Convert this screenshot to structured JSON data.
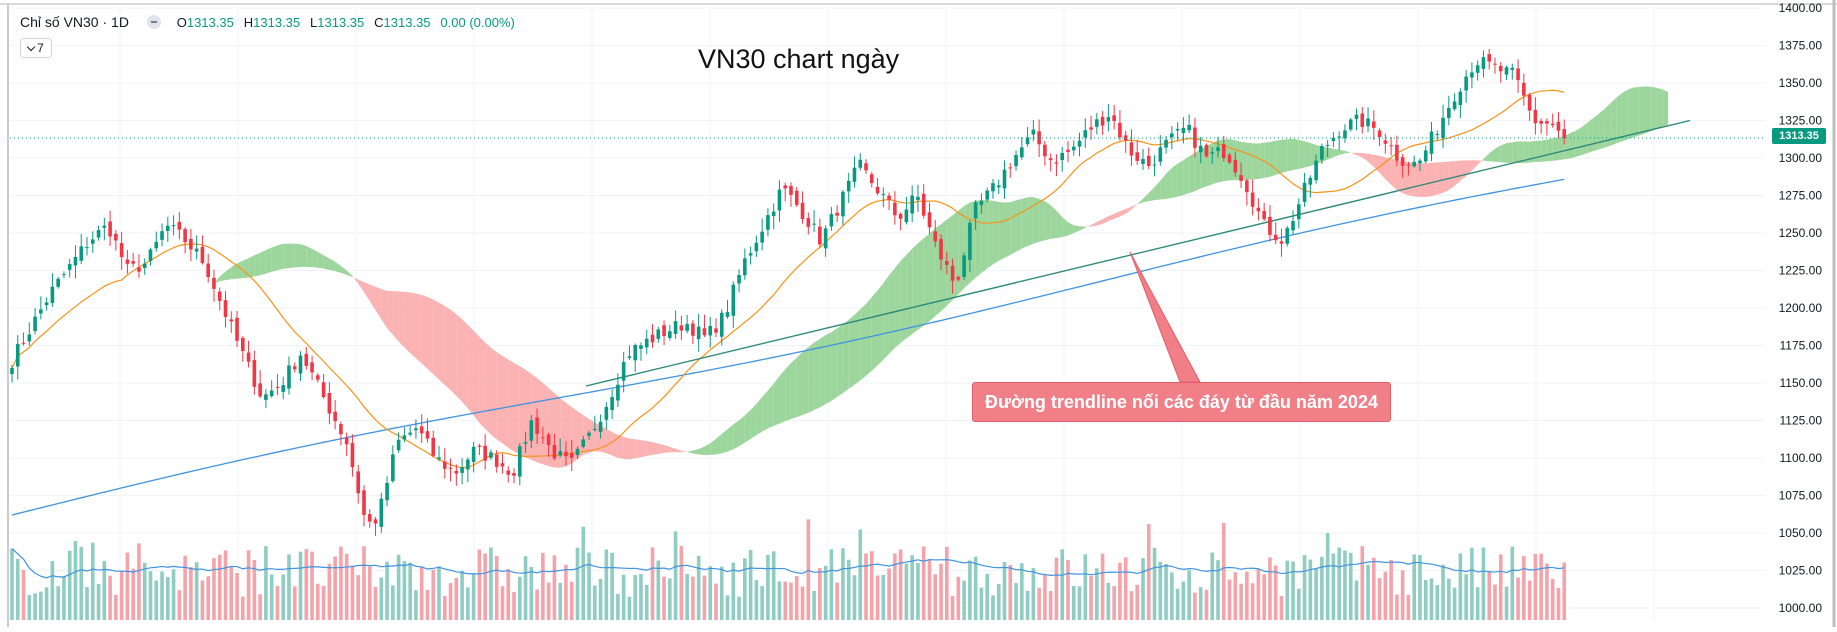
{
  "legend": {
    "symbol": "Chỉ số VN30 · 1D",
    "open_key": "O",
    "open": "1313.35",
    "high_key": "H",
    "high": "1313.35",
    "low_key": "L",
    "low": "1313.35",
    "close_key": "C",
    "close": "1313.35",
    "change": "0.00 (0.00%)"
  },
  "indicator_count": "7",
  "annotation": "Đường trendline nối các đáy từ đầu năm 2024",
  "last_price_label": "1313.35",
  "colors": {
    "up": "#089981",
    "down": "#f23645",
    "vol_up": "#8fcdc2",
    "vol_down": "#f5a3aa",
    "cloud_bull": "#8ccf8c",
    "cloud_bear": "#f9a5a5",
    "ma_fast": "#f7931a",
    "ma_slow": "#3f93e0",
    "trendline": "#2e8a7a",
    "annotation_bg": "#f07f87"
  },
  "chart_data": {
    "type": "candlestick",
    "title": "VN30 chart ngày",
    "y_ticks": [
      "1000.00",
      "1025.00",
      "1050.00",
      "1075.00",
      "1100.00",
      "1125.00",
      "1150.00",
      "1175.00",
      "1200.00",
      "1225.00",
      "1250.00",
      "1275.00",
      "1300.00",
      "1325.00",
      "1350.00",
      "1375.00",
      "1400.00"
    ],
    "ylim": [
      992,
      1400
    ],
    "bars": 270,
    "last_close": 1313.35,
    "close_anchors": [
      [
        0,
        1165
      ],
      [
        10,
        1210
      ],
      [
        20,
        1245
      ],
      [
        25,
        1255
      ],
      [
        30,
        1225
      ],
      [
        35,
        1230
      ],
      [
        40,
        1255
      ],
      [
        45,
        1245
      ],
      [
        50,
        1230
      ],
      [
        58,
        1180
      ],
      [
        65,
        1140
      ],
      [
        70,
        1150
      ],
      [
        75,
        1170
      ],
      [
        80,
        1145
      ],
      [
        87,
        1110
      ],
      [
        92,
        1055
      ],
      [
        95,
        1060
      ],
      [
        100,
        1110
      ],
      [
        105,
        1120
      ],
      [
        110,
        1100
      ],
      [
        115,
        1090
      ],
      [
        120,
        1105
      ],
      [
        125,
        1100
      ],
      [
        130,
        1090
      ],
      [
        135,
        1125
      ],
      [
        140,
        1105
      ],
      [
        145,
        1095
      ],
      [
        150,
        1115
      ],
      [
        155,
        1140
      ],
      [
        160,
        1170
      ],
      [
        165,
        1178
      ],
      [
        170,
        1185
      ],
      [
        175,
        1190
      ],
      [
        180,
        1180
      ],
      [
        185,
        1195
      ],
      [
        190,
        1230
      ],
      [
        195,
        1255
      ],
      [
        200,
        1280
      ],
      [
        205,
        1265
      ],
      [
        210,
        1245
      ],
      [
        215,
        1270
      ],
      [
        220,
        1295
      ],
      [
        225,
        1278
      ],
      [
        230,
        1260
      ],
      [
        235,
        1275
      ],
      [
        240,
        1240
      ],
      [
        245,
        1215
      ],
      [
        250,
        1265
      ],
      [
        255,
        1280
      ],
      [
        260,
        1300
      ],
      [
        265,
        1315
      ],
      [
        270,
        1298
      ],
      [
        275,
        1305
      ],
      [
        280,
        1320
      ],
      [
        285,
        1330
      ],
      [
        290,
        1305
      ],
      [
        295,
        1295
      ],
      [
        300,
        1310
      ],
      [
        305,
        1320
      ],
      [
        310,
        1300
      ],
      [
        315,
        1305
      ],
      [
        320,
        1285
      ],
      [
        325,
        1255
      ],
      [
        330,
        1245
      ],
      [
        335,
        1275
      ],
      [
        340,
        1305
      ],
      [
        345,
        1320
      ],
      [
        350,
        1325
      ],
      [
        355,
        1318
      ],
      [
        360,
        1300
      ],
      [
        365,
        1295
      ],
      [
        370,
        1320
      ],
      [
        375,
        1345
      ],
      [
        380,
        1365
      ],
      [
        385,
        1360
      ],
      [
        390,
        1355
      ],
      [
        395,
        1325
      ],
      [
        400,
        1322
      ],
      [
        403,
        1313
      ]
    ],
    "series": [
      {
        "name": "MA20",
        "type": "line"
      },
      {
        "name": "MA200",
        "type": "line"
      },
      {
        "name": "Ichimoku cloud",
        "type": "area"
      },
      {
        "name": "Volume",
        "type": "bar"
      },
      {
        "name": "Volume MA",
        "type": "line"
      }
    ],
    "trendline": {
      "from_value": 1148,
      "to_value": 1325
    },
    "grid": true
  }
}
